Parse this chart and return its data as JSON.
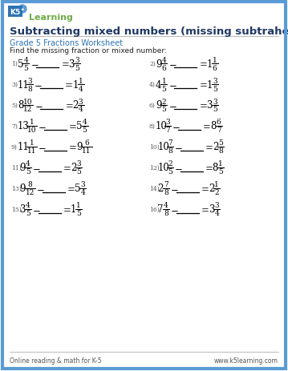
{
  "title": "Subtracting mixed numbers (missing subtrahend)",
  "subtitle": "Grade 5 Fractions Worksheet",
  "instruction": "Find the missing fraction or mixed number:",
  "border_color": "#5b9bd5",
  "title_color": "#1f3864",
  "subtitle_color": "#2e74b5",
  "text_color": "#222222",
  "background": "#ffffff",
  "footer_left": "Online reading & math for K-5",
  "footer_right": "www.k5learning.com",
  "problems": [
    {
      "num": "1)",
      "a_whole": "5",
      "a_num": "4",
      "a_den": "5",
      "eq_whole": "3",
      "eq_num": "3",
      "eq_den": "5"
    },
    {
      "num": "2)",
      "a_whole": "9",
      "a_num": "4",
      "a_den": "6",
      "eq_whole": "1",
      "eq_num": "1",
      "eq_den": "6"
    },
    {
      "num": "3)",
      "a_whole": "11",
      "a_num": "3",
      "a_den": "8",
      "eq_whole": "1",
      "eq_num": "1",
      "eq_den": "4"
    },
    {
      "num": "4)",
      "a_whole": "4",
      "a_num": "1",
      "a_den": "5",
      "eq_whole": "1",
      "eq_num": "3",
      "eq_den": "5"
    },
    {
      "num": "5)",
      "a_whole": "8",
      "a_num": "10",
      "a_den": "12",
      "eq_whole": "2",
      "eq_num": "3",
      "eq_den": "4"
    },
    {
      "num": "6)",
      "a_whole": "9",
      "a_num": "2",
      "a_den": "5",
      "eq_whole": "3",
      "eq_num": "3",
      "eq_den": "5"
    },
    {
      "num": "7)",
      "a_whole": "13",
      "a_num": "1",
      "a_den": "10",
      "eq_whole": "5",
      "eq_num": "4",
      "eq_den": "5"
    },
    {
      "num": "8)",
      "a_whole": "10",
      "a_num": "3",
      "a_den": "7",
      "eq_whole": "8",
      "eq_num": "6",
      "eq_den": "7"
    },
    {
      "num": "9)",
      "a_whole": "11",
      "a_num": "1",
      "a_den": "11",
      "eq_whole": "9",
      "eq_num": "6",
      "eq_den": "11"
    },
    {
      "num": "10)",
      "a_whole": "10",
      "a_num": "7",
      "a_den": "8",
      "eq_whole": "2",
      "eq_num": "5",
      "eq_den": "8"
    },
    {
      "num": "11)",
      "a_whole": "9",
      "a_num": "4",
      "a_den": "5",
      "eq_whole": "2",
      "eq_num": "3",
      "eq_den": "5"
    },
    {
      "num": "12)",
      "a_whole": "10",
      "a_num": "2",
      "a_den": "5",
      "eq_whole": "8",
      "eq_num": "1",
      "eq_den": "5"
    },
    {
      "num": "13)",
      "a_whole": "9",
      "a_num": "8",
      "a_den": "12",
      "eq_whole": "5",
      "eq_num": "3",
      "eq_den": "4"
    },
    {
      "num": "14)",
      "a_whole": "2",
      "a_num": "7",
      "a_den": "8",
      "eq_whole": "2",
      "eq_num": "1",
      "eq_den": "2"
    },
    {
      "num": "15)",
      "a_whole": "3",
      "a_num": "4",
      "a_den": "5",
      "eq_whole": "1",
      "eq_num": "1",
      "eq_den": "5"
    },
    {
      "num": "16)",
      "a_whole": "7",
      "a_num": "4",
      "a_den": "8",
      "eq_whole": "3",
      "eq_num": "3",
      "eq_den": "4"
    }
  ]
}
